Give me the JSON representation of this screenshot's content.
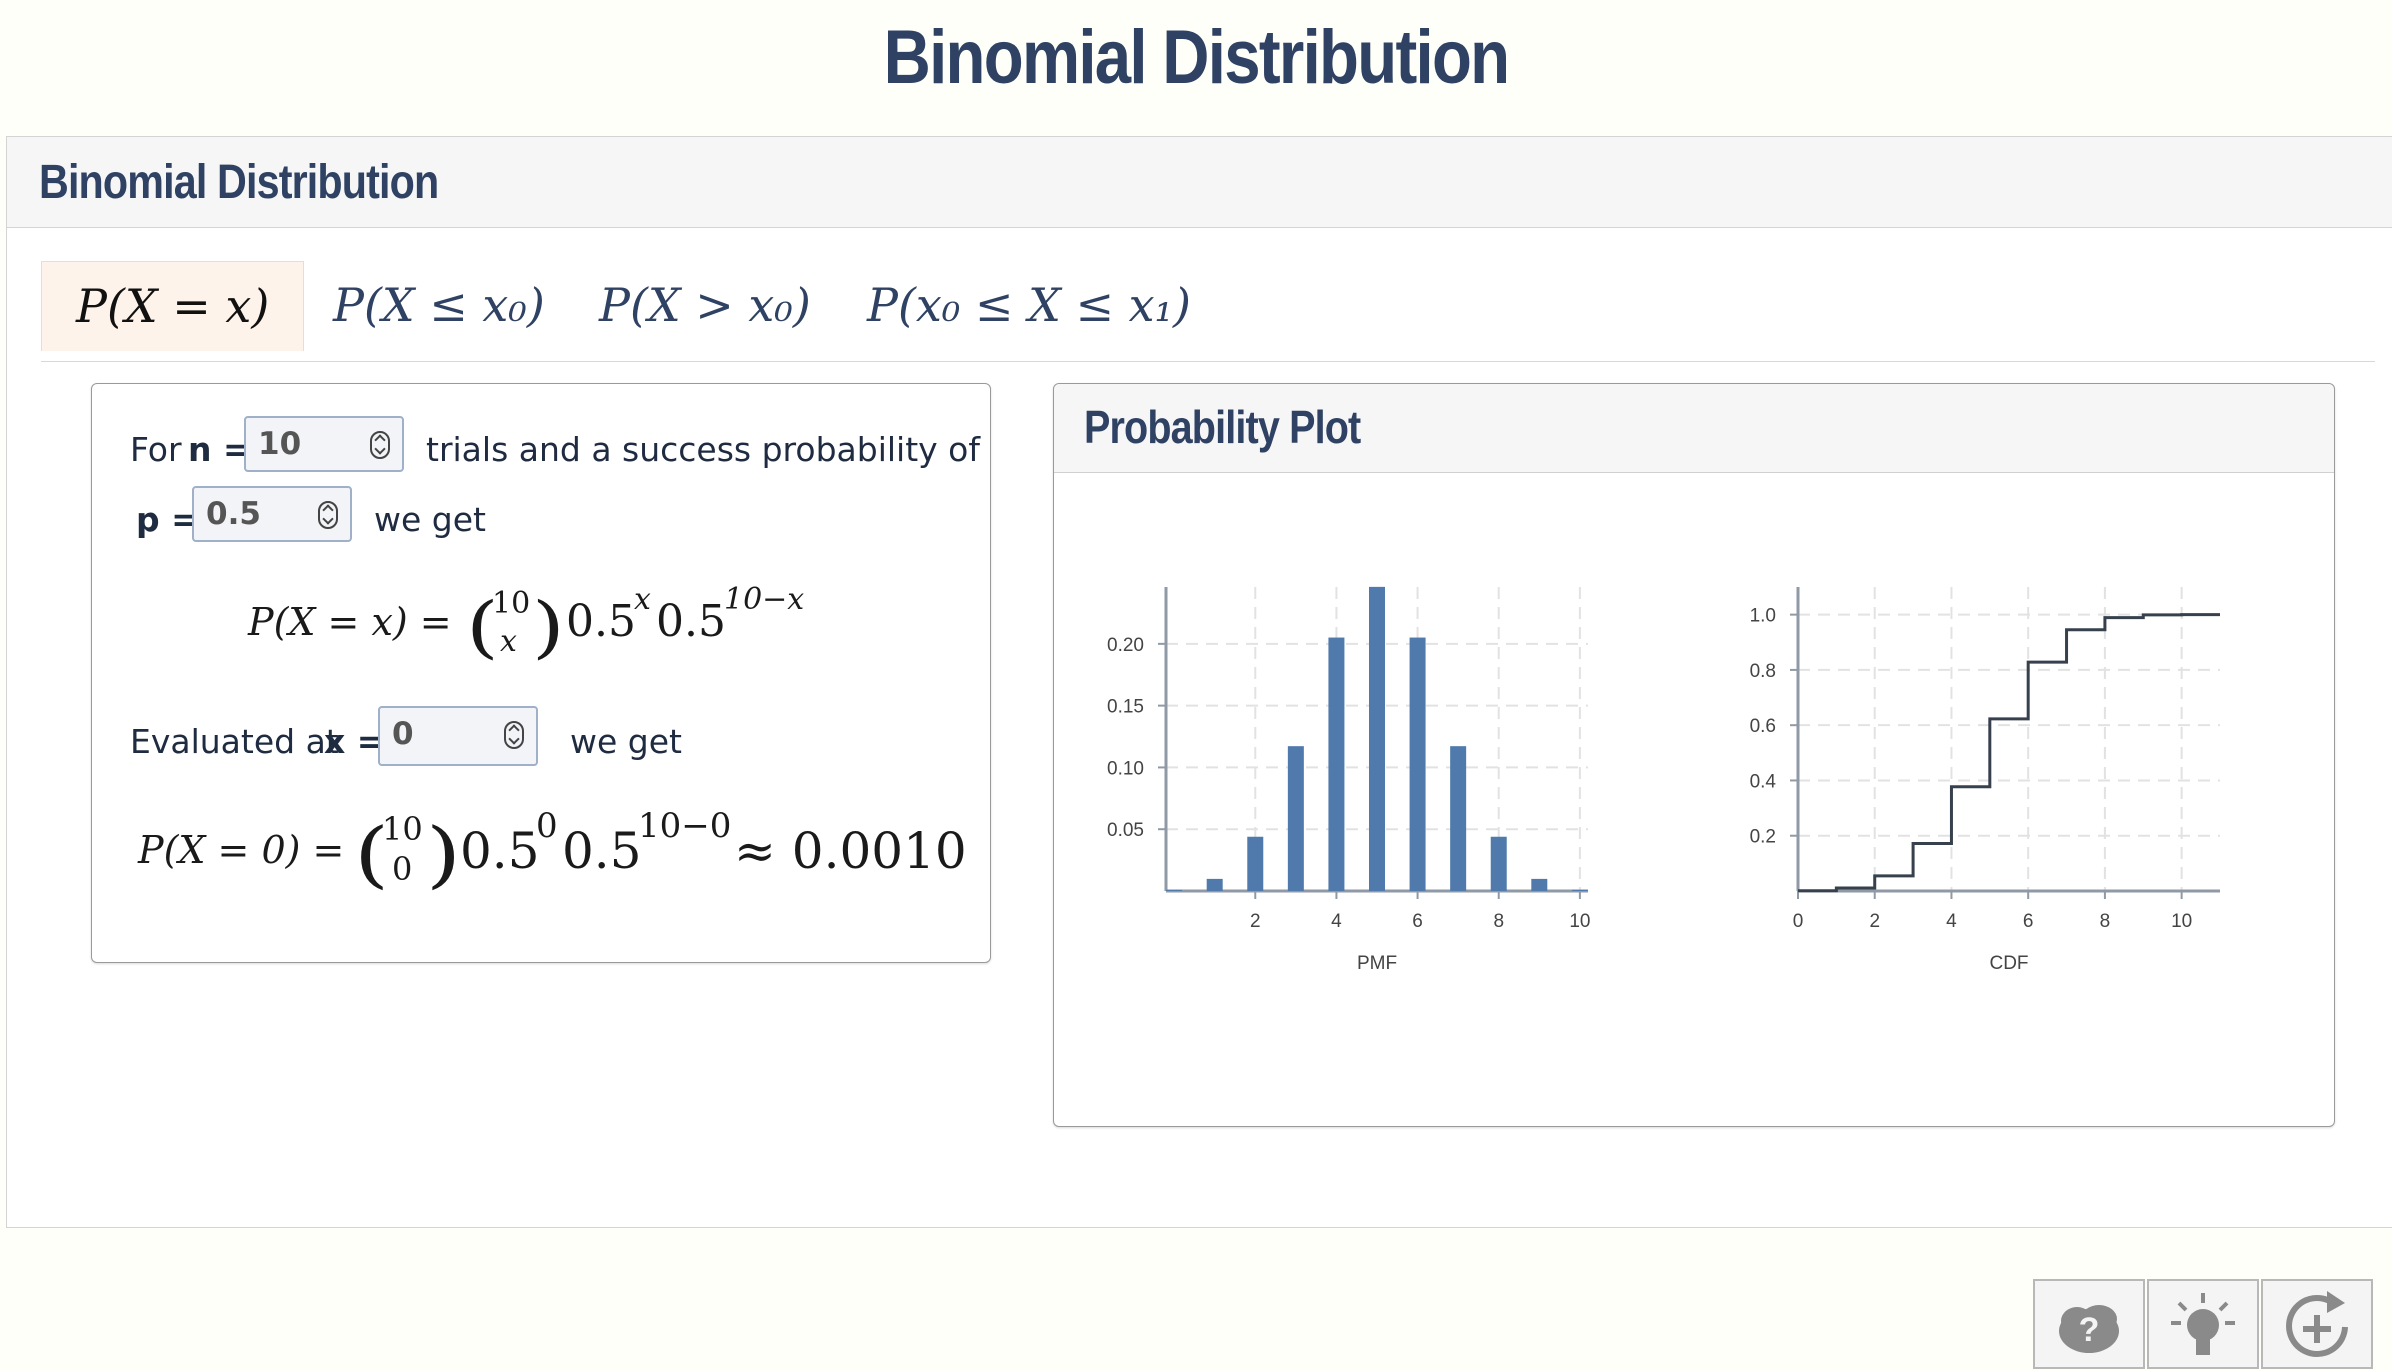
{
  "page_title": "Binomial Distribution",
  "panel_title": "Binomial Distribution",
  "tabs": [
    {
      "label": "P(X = x)",
      "active": true
    },
    {
      "label": "P(X ≤ x₀)",
      "active": false
    },
    {
      "label": "P(X > x₀)",
      "active": false
    },
    {
      "label": "P(x₀ ≤ X ≤ x₁)",
      "active": false
    }
  ],
  "calculator": {
    "for_label": "For",
    "n_label": "n =",
    "n_value": "10",
    "trials_text": "trials and a success probability of",
    "p_label": "p =",
    "p_value": "0.5",
    "we_get_1": "we get",
    "formula_lhs": "P(X = x) =",
    "binom_top": "10",
    "binom_bottom": "x",
    "formula_base1": "0.5",
    "formula_exp1": "x",
    "formula_base2": "0.5",
    "formula_exp2": "10−x",
    "evaluated_label": "Evaluated at",
    "x_label": "x =",
    "x_value": "0",
    "we_get_2": "we get",
    "result_lhs": "P(X = 0) =",
    "result_binom_top": "10",
    "result_binom_bottom": "0",
    "result_base1": "0.5",
    "result_exp1": "0",
    "result_base2": "0.5",
    "result_exp2": "10−0",
    "result_approx": "≈ 0.0010"
  },
  "plot_title": "Probability Plot",
  "colors": {
    "bar": "#4f7aab",
    "step": "#37404d",
    "title": "#2f4263",
    "active_tab_bg": "#fdf3ea"
  },
  "chart_data": [
    {
      "type": "bar",
      "xlabel": "PMF",
      "x": [
        0,
        1,
        2,
        3,
        4,
        5,
        6,
        7,
        8,
        9,
        10
      ],
      "values": [
        0.001,
        0.0098,
        0.0439,
        0.1172,
        0.2051,
        0.2461,
        0.2051,
        0.1172,
        0.0439,
        0.0098,
        0.001
      ],
      "xticks": [
        2,
        4,
        6,
        8,
        10
      ],
      "yticks": [
        0.05,
        0.1,
        0.15,
        0.2
      ],
      "ytick_labels": [
        "0.05",
        "0.10",
        "0.15",
        "0.20"
      ],
      "xlim": [
        -0.2,
        10.2
      ],
      "ylim": [
        0,
        0.246
      ],
      "grid": true
    },
    {
      "type": "line",
      "step": true,
      "xlabel": "CDF",
      "x": [
        0,
        1,
        2,
        3,
        4,
        5,
        6,
        7,
        8,
        9,
        10
      ],
      "values": [
        0.001,
        0.0107,
        0.0547,
        0.1719,
        0.377,
        0.623,
        0.8281,
        0.9453,
        0.9893,
        0.999,
        1.0
      ],
      "xticks": [
        0,
        2,
        4,
        6,
        8,
        10
      ],
      "yticks": [
        0.2,
        0.4,
        0.6,
        0.8,
        1.0
      ],
      "ytick_labels": [
        "0.2",
        "0.4",
        "0.6",
        "0.8",
        "1.0"
      ],
      "xlim": [
        0,
        11
      ],
      "ylim": [
        0,
        1.1
      ],
      "grid": true
    }
  ],
  "tools": [
    {
      "name": "help-brain-icon"
    },
    {
      "name": "hint-lightbulb-icon"
    },
    {
      "name": "add-rotate-icon"
    }
  ]
}
